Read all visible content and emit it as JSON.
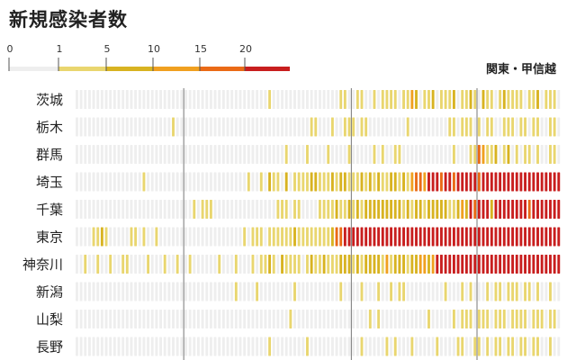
{
  "chart_data": {
    "type": "heatmap",
    "title": "新規感染者数",
    "region_label": "関東・甲信越",
    "scale": {
      "ticks": [
        "0",
        "1",
        "5",
        "10",
        "15",
        "20"
      ],
      "tick_values": [
        0,
        1,
        5,
        10,
        15,
        20
      ],
      "colors": [
        "#eeeeee",
        "#e9d66f",
        "#d8b321",
        "#f0a020",
        "#ea6a16",
        "#c81e1e"
      ]
    },
    "columns": 116,
    "rows": [
      {
        "name": "茨城",
        "values": [
          0,
          0,
          0,
          0,
          0,
          0,
          0,
          0,
          0,
          0,
          0,
          0,
          0,
          0,
          0,
          0,
          0,
          0,
          0,
          0,
          0,
          0,
          0,
          0,
          0,
          0,
          0,
          0,
          0,
          0,
          0,
          0,
          0,
          0,
          0,
          0,
          0,
          0,
          0,
          0,
          0,
          0,
          0,
          0,
          0,
          0,
          1,
          0,
          0,
          0,
          0,
          0,
          0,
          0,
          0,
          0,
          0,
          0,
          0,
          0,
          0,
          0,
          0,
          1,
          1,
          0,
          0,
          1,
          1,
          0,
          0,
          1,
          0,
          1,
          1,
          1,
          1,
          0,
          1,
          1,
          3,
          2,
          0,
          1,
          1,
          2,
          0,
          1,
          1,
          1,
          2,
          0,
          1,
          1,
          2,
          1,
          0,
          2,
          1,
          1,
          0,
          1,
          2,
          1,
          1,
          1,
          1,
          0,
          1,
          1,
          2,
          0,
          1,
          1,
          1,
          0
        ]
      },
      {
        "name": "栃木",
        "values": [
          0,
          0,
          0,
          0,
          0,
          0,
          0,
          0,
          0,
          0,
          0,
          0,
          0,
          0,
          0,
          0,
          0,
          0,
          0,
          0,
          0,
          0,
          0,
          1,
          0,
          0,
          0,
          0,
          0,
          0,
          0,
          0,
          0,
          0,
          0,
          0,
          0,
          0,
          0,
          0,
          0,
          0,
          0,
          0,
          0,
          0,
          0,
          0,
          0,
          0,
          0,
          0,
          0,
          0,
          0,
          0,
          1,
          1,
          0,
          0,
          0,
          1,
          0,
          0,
          1,
          1,
          1,
          0,
          1,
          1,
          0,
          0,
          0,
          0,
          0,
          0,
          0,
          0,
          0,
          1,
          0,
          0,
          0,
          0,
          0,
          0,
          0,
          0,
          0,
          1,
          1,
          0,
          1,
          1,
          1,
          0,
          1,
          0,
          1,
          1,
          0,
          0,
          1,
          1,
          1,
          0,
          1,
          1,
          0,
          1,
          1,
          0,
          0,
          1,
          1,
          0
        ]
      },
      {
        "name": "群馬",
        "values": [
          0,
          0,
          0,
          0,
          0,
          0,
          0,
          0,
          0,
          0,
          0,
          0,
          0,
          0,
          0,
          0,
          0,
          0,
          0,
          0,
          0,
          0,
          0,
          0,
          0,
          0,
          0,
          0,
          0,
          0,
          0,
          0,
          0,
          0,
          0,
          0,
          0,
          0,
          0,
          0,
          0,
          0,
          0,
          0,
          0,
          0,
          0,
          0,
          0,
          0,
          1,
          0,
          0,
          0,
          0,
          1,
          0,
          0,
          0,
          0,
          1,
          0,
          0,
          0,
          0,
          1,
          0,
          0,
          0,
          0,
          0,
          1,
          0,
          1,
          0,
          0,
          1,
          1,
          0,
          0,
          0,
          0,
          0,
          0,
          0,
          0,
          0,
          0,
          0,
          0,
          1,
          0,
          0,
          0,
          1,
          1,
          4,
          3,
          1,
          1,
          2,
          0,
          1,
          2,
          0,
          1,
          0,
          1,
          1,
          0,
          1,
          0,
          0,
          1,
          1,
          0
        ]
      },
      {
        "name": "埼玉",
        "values": [
          0,
          0,
          0,
          0,
          0,
          0,
          0,
          0,
          0,
          0,
          0,
          0,
          0,
          0,
          0,
          0,
          1,
          0,
          0,
          0,
          0,
          0,
          0,
          0,
          0,
          0,
          0,
          0,
          0,
          0,
          0,
          0,
          0,
          0,
          0,
          0,
          0,
          0,
          0,
          0,
          0,
          1,
          0,
          0,
          1,
          0,
          2,
          1,
          1,
          0,
          2,
          0,
          1,
          1,
          1,
          1,
          2,
          2,
          1,
          1,
          1,
          2,
          1,
          2,
          2,
          1,
          1,
          1,
          2,
          1,
          2,
          1,
          2,
          1,
          1,
          2,
          2,
          1,
          2,
          1,
          3,
          4,
          4,
          3,
          5,
          5,
          5,
          4,
          5,
          5,
          4,
          5,
          5,
          5,
          5,
          5,
          4,
          5,
          5,
          5,
          5,
          5,
          5,
          5,
          5,
          5,
          5,
          5,
          5,
          5,
          5,
          5,
          5,
          5,
          5,
          5
        ]
      },
      {
        "name": "千葉",
        "values": [
          0,
          0,
          0,
          0,
          0,
          0,
          0,
          0,
          0,
          0,
          0,
          0,
          0,
          0,
          0,
          0,
          0,
          0,
          0,
          0,
          0,
          0,
          0,
          0,
          0,
          0,
          0,
          0,
          1,
          0,
          1,
          1,
          1,
          0,
          0,
          0,
          0,
          0,
          0,
          0,
          0,
          0,
          0,
          0,
          0,
          0,
          0,
          0,
          1,
          1,
          1,
          0,
          1,
          1,
          0,
          0,
          0,
          0,
          1,
          1,
          1,
          1,
          2,
          1,
          1,
          2,
          1,
          2,
          1,
          2,
          2,
          2,
          2,
          2,
          2,
          2,
          2,
          2,
          1,
          2,
          1,
          2,
          2,
          1,
          2,
          2,
          2,
          2,
          2,
          1,
          1,
          2,
          3,
          2,
          5,
          4,
          5,
          5,
          5,
          2,
          5,
          5,
          5,
          5,
          5,
          5,
          5,
          5,
          4,
          5,
          5,
          5,
          5,
          5,
          5,
          5
        ]
      },
      {
        "name": "東京",
        "values": [
          0,
          0,
          0,
          0,
          1,
          1,
          2,
          1,
          0,
          0,
          0,
          0,
          0,
          1,
          1,
          0,
          1,
          0,
          0,
          1,
          0,
          0,
          0,
          0,
          0,
          0,
          0,
          0,
          0,
          0,
          0,
          0,
          0,
          0,
          0,
          0,
          0,
          0,
          0,
          0,
          1,
          0,
          1,
          1,
          1,
          0,
          1,
          1,
          1,
          1,
          1,
          1,
          2,
          1,
          1,
          1,
          1,
          1,
          1,
          1,
          1,
          2,
          4,
          4,
          5,
          5,
          5,
          5,
          5,
          5,
          5,
          5,
          5,
          5,
          5,
          5,
          5,
          5,
          5,
          5,
          5,
          5,
          5,
          5,
          5,
          5,
          5,
          5,
          5,
          5,
          5,
          5,
          5,
          5,
          5,
          5,
          5,
          5,
          5,
          5,
          5,
          5,
          5,
          5,
          5,
          5,
          5,
          5,
          5,
          5,
          5,
          5,
          5,
          5,
          5,
          5
        ]
      },
      {
        "name": "神奈川",
        "values": [
          0,
          0,
          1,
          0,
          0,
          1,
          0,
          0,
          1,
          0,
          0,
          1,
          1,
          0,
          0,
          0,
          0,
          1,
          0,
          0,
          0,
          1,
          0,
          0,
          1,
          0,
          0,
          1,
          0,
          0,
          0,
          0,
          0,
          0,
          1,
          0,
          0,
          0,
          1,
          0,
          0,
          0,
          1,
          0,
          1,
          1,
          2,
          1,
          0,
          2,
          1,
          1,
          1,
          1,
          0,
          1,
          2,
          1,
          1,
          2,
          1,
          1,
          1,
          2,
          2,
          2,
          1,
          2,
          1,
          2,
          2,
          2,
          2,
          1,
          3,
          1,
          2,
          2,
          2,
          1,
          2,
          2,
          3,
          3,
          2,
          3,
          5,
          5,
          5,
          5,
          5,
          5,
          5,
          5,
          5,
          5,
          5,
          5,
          5,
          5,
          5,
          5,
          5,
          5,
          5,
          5,
          5,
          5,
          5,
          5,
          5,
          5,
          5,
          5,
          5,
          5
        ]
      },
      {
        "name": "新潟",
        "values": [
          0,
          0,
          0,
          0,
          0,
          0,
          0,
          0,
          0,
          0,
          0,
          0,
          0,
          0,
          0,
          0,
          0,
          0,
          0,
          0,
          0,
          0,
          0,
          0,
          0,
          0,
          0,
          0,
          0,
          0,
          0,
          0,
          0,
          0,
          0,
          0,
          0,
          0,
          1,
          0,
          0,
          0,
          0,
          1,
          0,
          0,
          0,
          0,
          0,
          0,
          0,
          0,
          1,
          0,
          0,
          0,
          0,
          0,
          0,
          0,
          0,
          0,
          0,
          1,
          0,
          0,
          0,
          0,
          1,
          0,
          0,
          0,
          1,
          0,
          0,
          1,
          0,
          1,
          1,
          0,
          0,
          0,
          0,
          0,
          0,
          0,
          0,
          0,
          1,
          0,
          0,
          0,
          1,
          0,
          1,
          0,
          0,
          0,
          1,
          0,
          1,
          1,
          0,
          1,
          1,
          1,
          0,
          1,
          1,
          0,
          1,
          0,
          0,
          1,
          0,
          0
        ]
      },
      {
        "name": "山梨",
        "values": [
          0,
          0,
          0,
          0,
          0,
          0,
          0,
          0,
          0,
          0,
          0,
          0,
          0,
          0,
          0,
          0,
          0,
          0,
          0,
          0,
          0,
          0,
          0,
          0,
          0,
          0,
          0,
          0,
          0,
          0,
          0,
          0,
          0,
          0,
          0,
          0,
          0,
          0,
          0,
          0,
          0,
          0,
          0,
          0,
          0,
          0,
          0,
          0,
          0,
          0,
          0,
          1,
          0,
          0,
          0,
          0,
          0,
          0,
          0,
          0,
          0,
          0,
          0,
          0,
          0,
          0,
          0,
          0,
          0,
          0,
          1,
          0,
          1,
          0,
          0,
          0,
          0,
          0,
          0,
          0,
          0,
          0,
          0,
          0,
          1,
          0,
          0,
          0,
          0,
          0,
          1,
          0,
          1,
          1,
          1,
          0,
          1,
          1,
          1,
          0,
          1,
          1,
          1,
          0,
          1,
          1,
          1,
          1,
          0,
          1,
          1,
          1,
          0,
          1,
          1,
          0
        ]
      },
      {
        "name": "長野",
        "values": [
          0,
          0,
          0,
          0,
          0,
          0,
          0,
          0,
          0,
          0,
          0,
          0,
          0,
          0,
          0,
          0,
          0,
          0,
          0,
          0,
          0,
          0,
          0,
          0,
          0,
          0,
          0,
          0,
          0,
          0,
          0,
          0,
          0,
          0,
          0,
          0,
          0,
          0,
          0,
          0,
          0,
          0,
          0,
          0,
          0,
          0,
          1,
          0,
          0,
          0,
          0,
          0,
          0,
          0,
          0,
          1,
          0,
          0,
          0,
          0,
          0,
          0,
          0,
          0,
          0,
          0,
          0,
          0,
          1,
          0,
          0,
          0,
          0,
          0,
          1,
          0,
          1,
          0,
          0,
          0,
          1,
          0,
          0,
          0,
          0,
          0,
          1,
          0,
          0,
          0,
          0,
          1,
          1,
          0,
          0,
          1,
          1,
          0,
          1,
          0,
          1,
          1,
          0,
          1,
          1,
          0,
          1,
          1,
          0,
          1,
          1,
          0,
          0,
          1,
          0,
          0
        ]
      }
    ],
    "month_dividers": [
      26,
      66,
      96
    ]
  }
}
